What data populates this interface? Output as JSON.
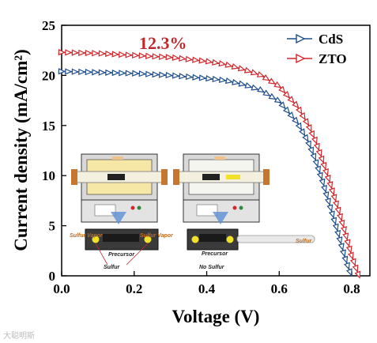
{
  "chart_data": {
    "type": "line",
    "title": "",
    "xlabel": "Voltage (V)",
    "ylabel": "Current density (mA/cm²)",
    "xlim": [
      0.0,
      0.85
    ],
    "ylim": [
      0,
      25
    ],
    "xticks": [
      "0.0",
      "0.2",
      "0.4",
      "0.6",
      "0.8"
    ],
    "yticks": [
      "0",
      "5",
      "10",
      "15",
      "20",
      "25"
    ],
    "legend_position": "top-right",
    "annotation": {
      "text": "12.3%",
      "color": "#c0282c"
    },
    "series": [
      {
        "name": "CdS",
        "color": "#1f4e8c",
        "x": [
          0.0,
          0.1,
          0.2,
          0.3,
          0.4,
          0.45,
          0.5,
          0.55,
          0.6,
          0.65,
          0.68,
          0.7,
          0.72,
          0.74,
          0.76,
          0.78,
          0.79,
          0.8
        ],
        "y": [
          20.4,
          20.3,
          20.2,
          20.0,
          19.7,
          19.5,
          19.1,
          18.5,
          17.4,
          15.3,
          13.4,
          11.6,
          9.4,
          7.0,
          4.6,
          2.0,
          0.9,
          0.0
        ]
      },
      {
        "name": "ZTO",
        "color": "#d1272d",
        "x": [
          0.0,
          0.1,
          0.2,
          0.3,
          0.4,
          0.45,
          0.5,
          0.55,
          0.6,
          0.65,
          0.68,
          0.7,
          0.72,
          0.74,
          0.76,
          0.78,
          0.8,
          0.82
        ],
        "y": [
          22.3,
          22.2,
          22.0,
          21.8,
          21.4,
          21.1,
          20.6,
          20.0,
          18.9,
          16.9,
          15.1,
          13.5,
          11.5,
          9.3,
          7.0,
          4.6,
          2.0,
          0.0
        ]
      }
    ],
    "inset": {
      "left_labels": [
        "Sulfur Vapor",
        "Sulfur Vapor",
        "Precursor",
        "Sulfur"
      ],
      "right_labels": [
        "Precursor",
        "No Sulfur",
        "Sulfur"
      ]
    }
  },
  "watermark": "大聪明斯"
}
